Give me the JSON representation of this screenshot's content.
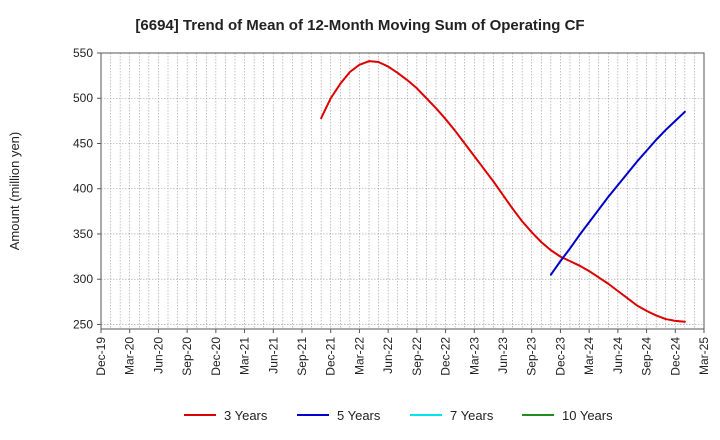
{
  "chart_data": {
    "type": "line",
    "title": "[6694]  Trend of Mean of 12-Month Moving Sum of Operating CF",
    "xlabel": "",
    "ylabel": "Amount (million yen)",
    "ylim": [
      245,
      550
    ],
    "yticks": [
      250,
      300,
      350,
      400,
      450,
      500,
      550
    ],
    "grid": true,
    "legend_position": "bottom",
    "x_tick_labels": [
      "Dec-19",
      "Mar-20",
      "Jun-20",
      "Sep-20",
      "Dec-20",
      "Mar-21",
      "Jun-21",
      "Sep-21",
      "Dec-21",
      "Mar-22",
      "Jun-22",
      "Sep-22",
      "Dec-22",
      "Mar-23",
      "Jun-23",
      "Sep-23",
      "Dec-23",
      "Mar-24",
      "Jun-24",
      "Sep-24",
      "Dec-24",
      "Mar-25"
    ],
    "x_start": "Dec-19",
    "x_end": "Mar-25",
    "series": [
      {
        "name": "3 Years",
        "color": "#dd0000",
        "start_month": "Nov-21",
        "values": [
          478,
          500,
          516,
          529,
          537,
          541,
          540,
          535,
          528,
          520,
          511,
          500,
          489,
          477,
          464,
          450,
          436,
          422,
          408,
          393,
          378,
          364,
          352,
          341,
          332,
          325,
          320,
          315,
          309,
          302,
          295,
          287,
          279,
          271,
          265,
          260,
          256,
          254,
          253
        ]
      },
      {
        "name": "5 Years",
        "color": "#0000cc",
        "start_month": "Nov-23",
        "values": [
          305,
          320,
          334,
          349,
          363,
          377,
          391,
          404,
          417,
          430,
          442,
          454,
          465,
          475,
          485
        ]
      },
      {
        "name": "7 Years",
        "color": "#00e5ee",
        "start_month": "",
        "values": []
      },
      {
        "name": "10 Years",
        "color": "#228b22",
        "start_month": "",
        "values": []
      }
    ]
  }
}
